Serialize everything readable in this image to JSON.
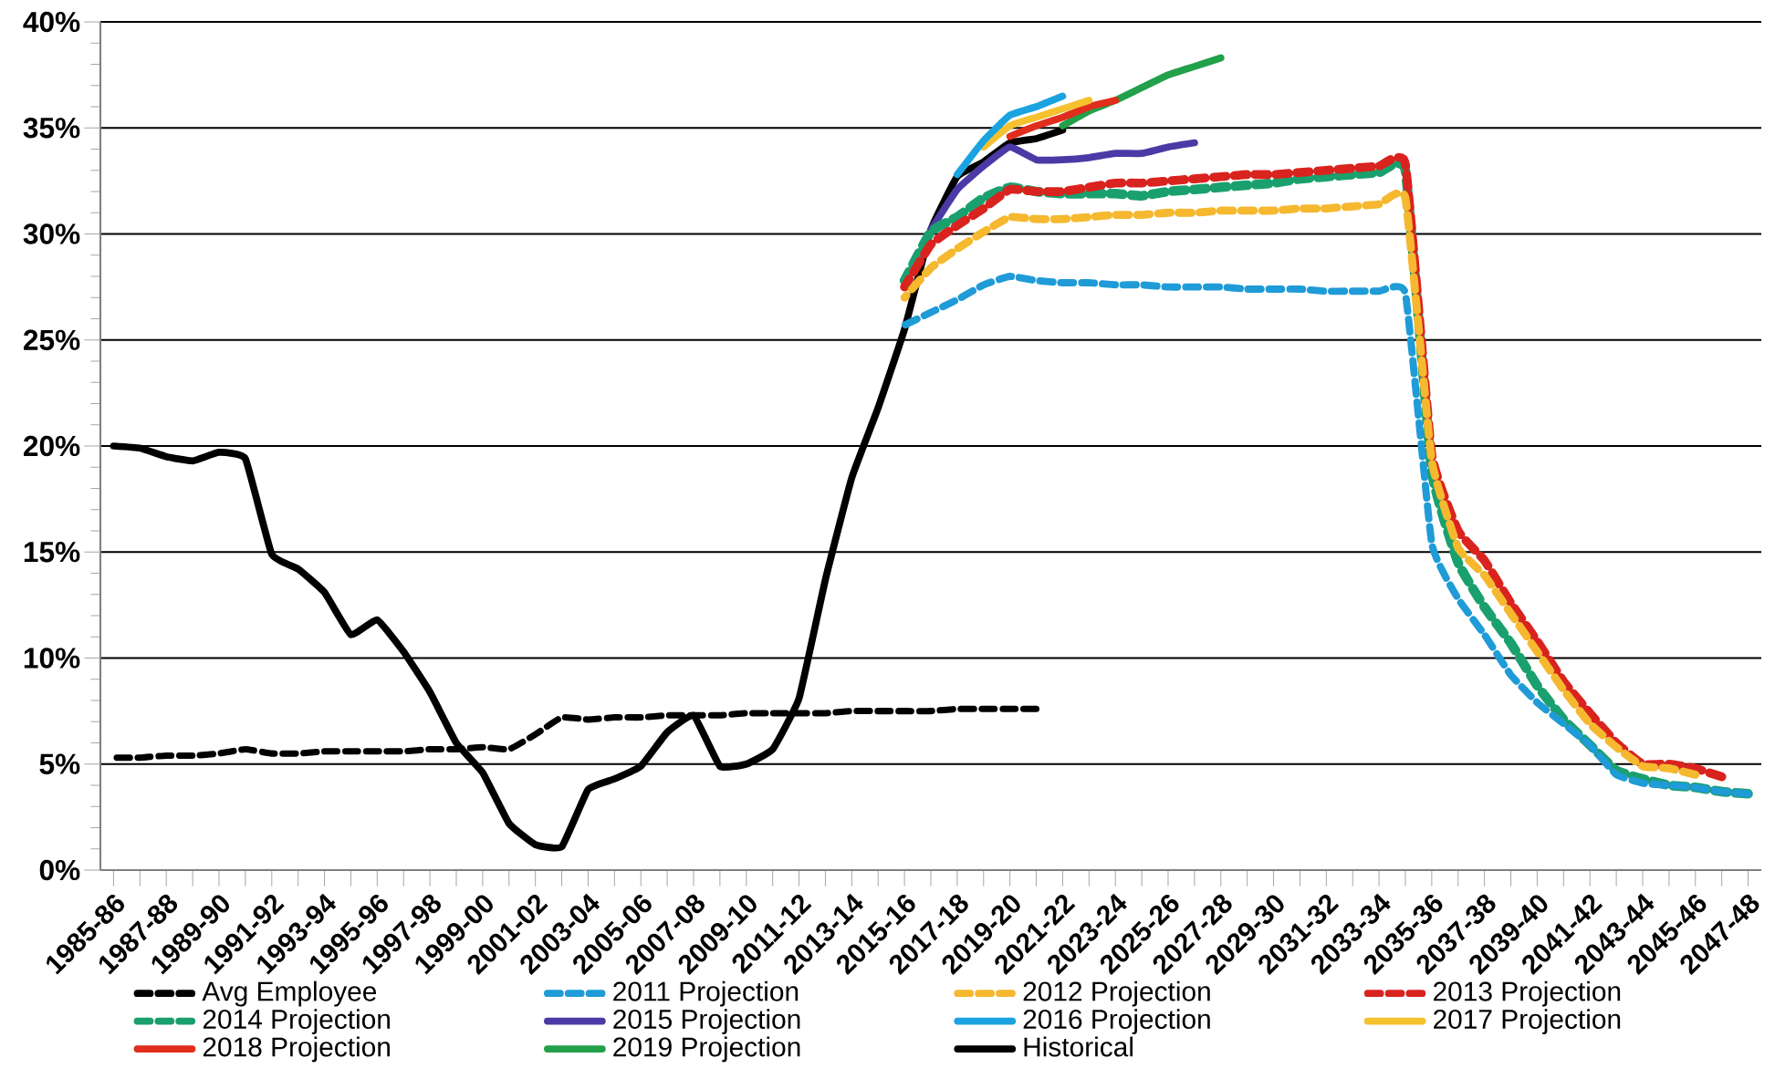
{
  "chart_data": {
    "type": "line",
    "categories": [
      "1985-86",
      null,
      "1987-88",
      null,
      "1989-90",
      null,
      "1991-92",
      null,
      "1993-94",
      null,
      "1995-96",
      null,
      "1997-98",
      null,
      "1999-00",
      null,
      "2001-02",
      null,
      "2003-04",
      null,
      "2005-06",
      null,
      "2007-08",
      null,
      "2009-10",
      null,
      "2011-12",
      null,
      "2013-14",
      null,
      "2015-16",
      null,
      "2017-18",
      null,
      "2019-20",
      null,
      "2021-22",
      null,
      "2023-24",
      null,
      "2025-26",
      null,
      "2027-28",
      null,
      "2029-30",
      null,
      "2031-32",
      null,
      "2033-34",
      null,
      "2035-36",
      null,
      "2037-38",
      null,
      "2039-40",
      null,
      "2041-42",
      null,
      "2043-44",
      null,
      "2045-46",
      null,
      "2047-48"
    ],
    "ylim": [
      0,
      40
    ],
    "yticks": [
      {
        "value": 0,
        "label": "0%"
      },
      {
        "value": 5,
        "label": "5%"
      },
      {
        "value": 10,
        "label": "10%"
      },
      {
        "value": 15,
        "label": "15%"
      },
      {
        "value": 20,
        "label": "20%"
      },
      {
        "value": 25,
        "label": "25%"
      },
      {
        "value": 30,
        "label": "30%"
      },
      {
        "value": 35,
        "label": "35%"
      },
      {
        "value": 40,
        "label": "40%"
      }
    ],
    "grid": "y",
    "legend": "bottom",
    "marker": "none",
    "series": [
      {
        "name": "Avg Employee",
        "color": "#000000",
        "line_style": "dashed",
        "values": [
          5.3,
          5.3,
          5.4,
          5.4,
          5.5,
          5.7,
          5.5,
          5.5,
          5.6,
          5.6,
          5.6,
          5.6,
          5.7,
          5.7,
          5.8,
          5.7,
          6.4,
          7.2,
          7.1,
          7.2,
          7.2,
          7.3,
          7.3,
          7.3,
          7.4,
          7.4,
          7.4,
          7.4,
          7.5,
          7.5,
          7.5,
          7.5,
          7.6,
          7.6,
          7.6,
          7.6,
          null,
          null,
          null,
          null,
          null,
          null,
          null,
          null,
          null,
          null,
          null,
          null,
          null,
          null,
          null,
          null,
          null,
          null,
          null,
          null,
          null,
          null,
          null,
          null,
          null,
          null,
          null
        ]
      },
      {
        "name": "2011 Projection",
        "color": "#1f9bd7",
        "line_style": "dashed",
        "values": [
          null,
          null,
          null,
          null,
          null,
          null,
          null,
          null,
          null,
          null,
          null,
          null,
          null,
          null,
          null,
          null,
          null,
          null,
          null,
          null,
          null,
          null,
          null,
          null,
          null,
          null,
          null,
          null,
          null,
          null,
          25.7,
          26.3,
          26.9,
          27.6,
          28.0,
          27.8,
          27.7,
          27.7,
          27.6,
          27.6,
          27.5,
          27.5,
          27.5,
          27.4,
          27.4,
          27.4,
          27.3,
          27.3,
          27.3,
          27.2,
          15.4,
          12.8,
          11.1,
          9.2,
          7.9,
          6.9,
          5.9,
          4.5,
          4.1,
          4.0,
          3.9,
          3.7,
          3.6
        ]
      },
      {
        "name": "2012 Projection",
        "color": "#f5b82e",
        "line_style": "dashed",
        "values": [
          null,
          null,
          null,
          null,
          null,
          null,
          null,
          null,
          null,
          null,
          null,
          null,
          null,
          null,
          null,
          null,
          null,
          null,
          null,
          null,
          null,
          null,
          null,
          null,
          null,
          null,
          null,
          null,
          null,
          null,
          27.0,
          28.4,
          29.3,
          30.1,
          30.8,
          30.7,
          30.7,
          30.8,
          30.9,
          30.9,
          31.0,
          31.0,
          31.1,
          31.1,
          31.1,
          31.2,
          31.2,
          31.3,
          31.4,
          31.7,
          19.3,
          15.2,
          13.9,
          12.1,
          10.3,
          8.5,
          6.9,
          5.8,
          4.9,
          4.8,
          4.5,
          null,
          null
        ]
      },
      {
        "name": "2013 Projection",
        "color": "#d9231e",
        "line_style": "dashed",
        "values": [
          null,
          null,
          null,
          null,
          null,
          null,
          null,
          null,
          null,
          null,
          null,
          null,
          null,
          null,
          null,
          null,
          null,
          null,
          null,
          null,
          null,
          null,
          null,
          null,
          null,
          null,
          null,
          null,
          null,
          null,
          27.5,
          29.5,
          30.4,
          31.2,
          32.1,
          32.0,
          32.0,
          32.2,
          32.4,
          32.4,
          32.5,
          32.6,
          32.7,
          32.8,
          32.8,
          32.9,
          33.0,
          33.1,
          33.2,
          33.3,
          19.6,
          16.0,
          14.6,
          12.6,
          10.8,
          8.9,
          7.4,
          6.0,
          5.0,
          5.0,
          4.8,
          4.4,
          null
        ]
      },
      {
        "name": "2014 Projection",
        "color": "#1aa06e",
        "line_style": "dashed",
        "values": [
          null,
          null,
          null,
          null,
          null,
          null,
          null,
          null,
          null,
          null,
          null,
          null,
          null,
          null,
          null,
          null,
          null,
          null,
          null,
          null,
          null,
          null,
          null,
          null,
          null,
          null,
          null,
          null,
          null,
          null,
          27.8,
          30.1,
          30.8,
          31.7,
          32.2,
          32.0,
          31.9,
          31.9,
          31.9,
          31.8,
          32.0,
          32.1,
          32.2,
          32.3,
          32.4,
          32.6,
          32.7,
          32.8,
          32.9,
          33.0,
          18.8,
          14.5,
          12.4,
          10.7,
          8.7,
          7.1,
          5.9,
          4.7,
          4.3,
          4.0,
          3.9,
          3.7,
          3.6
        ]
      },
      {
        "name": "2015 Projection",
        "color": "#4b3aa6",
        "line_style": "solid",
        "values": [
          null,
          null,
          null,
          null,
          null,
          null,
          null,
          null,
          null,
          null,
          null,
          null,
          null,
          null,
          null,
          null,
          null,
          null,
          null,
          null,
          null,
          null,
          null,
          null,
          null,
          null,
          null,
          null,
          null,
          null,
          null,
          30.2,
          32.1,
          33.2,
          34.1,
          33.5,
          33.5,
          33.6,
          33.8,
          33.8,
          34.1,
          34.3,
          null,
          null,
          null,
          null,
          null,
          null,
          null,
          null,
          null,
          null,
          null,
          null,
          null,
          null,
          null,
          null,
          null,
          null,
          null,
          null,
          null
        ]
      },
      {
        "name": "2016 Projection",
        "color": "#1aa3e0",
        "line_style": "solid",
        "values": [
          null,
          null,
          null,
          null,
          null,
          null,
          null,
          null,
          null,
          null,
          null,
          null,
          null,
          null,
          null,
          null,
          null,
          null,
          null,
          null,
          null,
          null,
          null,
          null,
          null,
          null,
          null,
          null,
          null,
          null,
          null,
          null,
          32.8,
          34.4,
          35.6,
          36.0,
          36.5,
          null,
          null,
          null,
          null,
          null,
          null,
          null,
          null,
          null,
          null,
          null,
          null,
          null,
          null,
          null,
          null,
          null,
          null,
          null,
          null,
          null,
          null,
          null,
          null,
          null,
          null
        ]
      },
      {
        "name": "2017 Projection",
        "color": "#f5c12e",
        "line_style": "solid",
        "values": [
          null,
          null,
          null,
          null,
          null,
          null,
          null,
          null,
          null,
          null,
          null,
          null,
          null,
          null,
          null,
          null,
          null,
          null,
          null,
          null,
          null,
          null,
          null,
          null,
          null,
          null,
          null,
          null,
          null,
          null,
          null,
          null,
          null,
          34.1,
          35.1,
          35.5,
          35.9,
          36.3,
          null,
          null,
          null,
          null,
          null,
          null,
          null,
          null,
          null,
          null,
          null,
          null,
          null,
          null,
          null,
          null,
          null,
          null,
          null,
          null,
          null,
          null,
          null,
          null,
          null
        ]
      },
      {
        "name": "2018 Projection",
        "color": "#e02d1c",
        "line_style": "solid",
        "values": [
          null,
          null,
          null,
          null,
          null,
          null,
          null,
          null,
          null,
          null,
          null,
          null,
          null,
          null,
          null,
          null,
          null,
          null,
          null,
          null,
          null,
          null,
          null,
          null,
          null,
          null,
          null,
          null,
          null,
          null,
          null,
          null,
          null,
          null,
          34.6,
          35.1,
          35.5,
          36.0,
          36.3,
          null,
          null,
          null,
          null,
          null,
          null,
          null,
          null,
          null,
          null,
          null,
          null,
          null,
          null,
          null,
          null,
          null,
          null,
          null,
          null,
          null,
          null,
          null,
          null
        ]
      },
      {
        "name": "2019 Projection",
        "color": "#22a04a",
        "line_style": "solid",
        "values": [
          null,
          null,
          null,
          null,
          null,
          null,
          null,
          null,
          null,
          null,
          null,
          null,
          null,
          null,
          null,
          null,
          null,
          null,
          null,
          null,
          null,
          null,
          null,
          null,
          null,
          null,
          null,
          null,
          null,
          null,
          null,
          null,
          null,
          null,
          null,
          null,
          35.1,
          35.8,
          36.3,
          36.9,
          37.5,
          37.9,
          38.3,
          null,
          null,
          null,
          null,
          null,
          null,
          null,
          null,
          null,
          null,
          null,
          null,
          null,
          null,
          null,
          null,
          null,
          null,
          null,
          null
        ]
      },
      {
        "name": "Historical",
        "color": "#000000",
        "line_style": "solid",
        "values": [
          20.0,
          19.9,
          19.5,
          19.3,
          19.7,
          19.4,
          14.9,
          14.2,
          13.1,
          11.1,
          11.8,
          10.3,
          8.4,
          6.0,
          4.6,
          2.2,
          1.2,
          1.1,
          3.8,
          4.3,
          4.9,
          6.5,
          7.3,
          4.9,
          5.0,
          5.7,
          8.1,
          13.7,
          18.5,
          21.8,
          25.5,
          30.2,
          32.7,
          33.4,
          34.3,
          34.5,
          34.9,
          null,
          null,
          null,
          null,
          null,
          null,
          null,
          null,
          null,
          null,
          null,
          null,
          null,
          null,
          null,
          null,
          null,
          null,
          null,
          null,
          null,
          null,
          null,
          null,
          null,
          null
        ]
      }
    ]
  }
}
